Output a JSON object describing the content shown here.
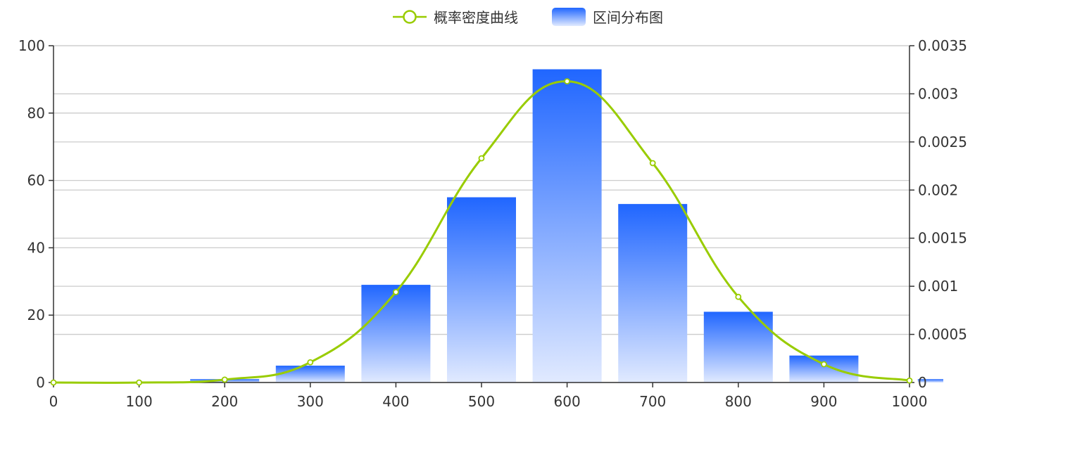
{
  "chart_data": {
    "type": "bar",
    "legend": {
      "position": "top-center",
      "items": [
        {
          "label": "概率密度曲线",
          "kind": "line",
          "color": "#99CC00"
        },
        {
          "label": "区间分布图",
          "kind": "bar",
          "color": "#2066FF"
        }
      ]
    },
    "x_axis": {
      "min": 0,
      "max": 1000,
      "ticks": [
        "0",
        "100",
        "200",
        "300",
        "400",
        "500",
        "600",
        "700",
        "800",
        "900",
        "1000"
      ]
    },
    "y_left": {
      "min": 0,
      "max": 100,
      "ticks": [
        "0",
        "20",
        "40",
        "60",
        "80",
        "100"
      ]
    },
    "y_right": {
      "min": 0,
      "max": 0.0035,
      "ticks": [
        "0",
        "0.0005",
        "0.001",
        "0.0015",
        "0.002",
        "0.0025",
        "0.003",
        "0.0035"
      ]
    },
    "grid": true,
    "series": [
      {
        "name": "区间分布图",
        "type": "bar",
        "axis": "left",
        "color_top": "#2066FF",
        "color_bottom": "#E1EAFF",
        "x": [
          200,
          300,
          400,
          500,
          600,
          700,
          800,
          900,
          1050
        ],
        "values": [
          1,
          5,
          29,
          55,
          93,
          53,
          21,
          8,
          1
        ]
      },
      {
        "name": "概率密度曲线",
        "type": "line",
        "axis": "right",
        "smooth": true,
        "color": "#99CC00",
        "x": [
          0,
          100,
          200,
          300,
          400,
          500,
          600,
          700,
          800,
          900,
          1000
        ],
        "values": [
          0.0,
          0.0,
          3e-05,
          0.00021,
          0.00094,
          0.00233,
          0.00313,
          0.00228,
          0.00089,
          0.00019,
          2e-05
        ]
      }
    ]
  }
}
